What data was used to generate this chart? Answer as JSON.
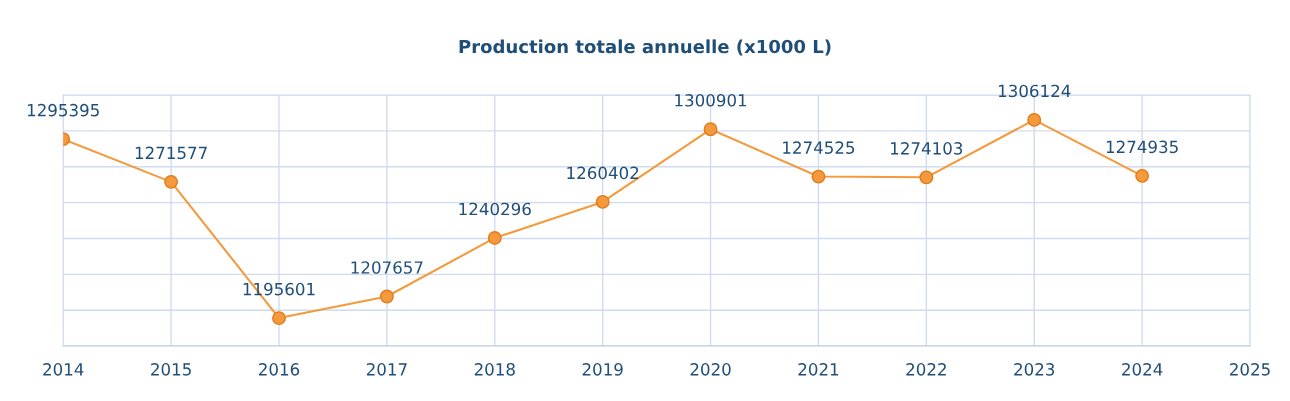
{
  "chart_data": {
    "type": "line",
    "title": "Production totale annuelle (x1000 L)",
    "x": [
      2014,
      2015,
      2016,
      2017,
      2018,
      2019,
      2020,
      2021,
      2022,
      2023,
      2024
    ],
    "series": [
      {
        "color": "#f59a3c",
        "values": [
          1295395,
          1271577,
          1195601,
          1207657,
          1240296,
          1260402,
          1300901,
          1274525,
          1274103,
          1306124,
          1274935
        ]
      }
    ],
    "xlim": [
      2014,
      2025
    ],
    "xticks": [
      2014,
      2015,
      2016,
      2017,
      2018,
      2019,
      2020,
      2021,
      2022,
      2023,
      2024,
      2025
    ],
    "ylim": [
      1180000,
      1320000
    ],
    "yticks": [
      {
        "value": 1180000,
        "label": null
      },
      {
        "value": 1200000,
        "label": null
      },
      {
        "value": 1220000,
        "label": null
      },
      {
        "value": 1240000,
        "label": null
      },
      {
        "value": 1260000,
        "label": null
      },
      {
        "value": 1280000,
        "label": null
      },
      {
        "value": 1300000,
        "label": null
      },
      {
        "value": 1320000,
        "label": null
      }
    ],
    "tick_labels": "x",
    "grid": true,
    "marker": "circle",
    "line_style": "solid",
    "data_labels": true,
    "legend": false
  }
}
